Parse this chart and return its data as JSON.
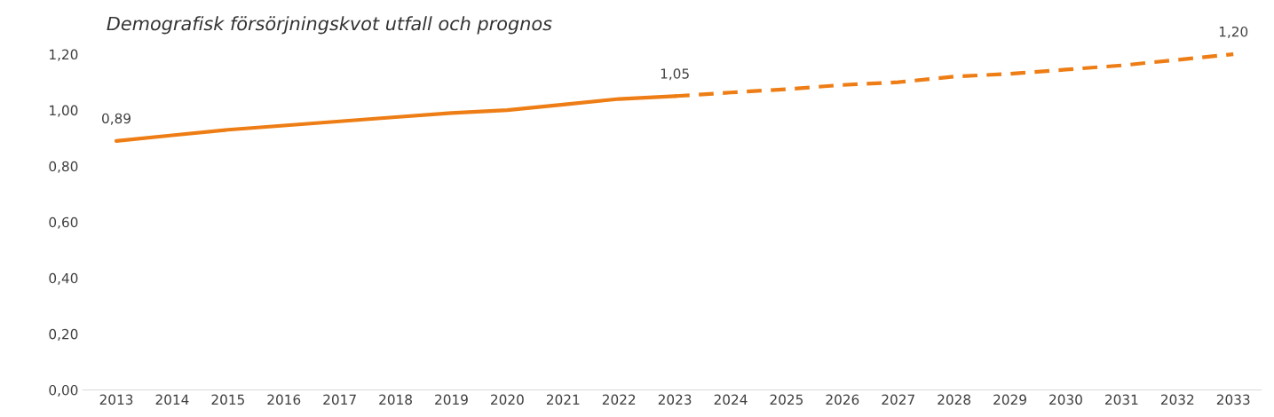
{
  "chart_data": {
    "type": "line",
    "title": "Demografisk försörjningskvot utfall och prognos",
    "categories": [
      "2013",
      "2014",
      "2015",
      "2016",
      "2017",
      "2018",
      "2019",
      "2020",
      "2021",
      "2022",
      "2023",
      "2024",
      "2025",
      "2026",
      "2027",
      "2028",
      "2029",
      "2030",
      "2031",
      "2032",
      "2033"
    ],
    "series": [
      {
        "color": "#ed7d14",
        "line_style": "solid",
        "values": [
          0.89,
          0.91,
          0.93,
          0.945,
          0.96,
          0.975,
          0.99,
          1.0,
          1.02,
          1.04,
          1.05,
          null,
          null,
          null,
          null,
          null,
          null,
          null,
          null,
          null,
          null
        ],
        "value_labels": [
          "0,89",
          null,
          null,
          null,
          null,
          null,
          null,
          null,
          null,
          null,
          "1,05",
          null,
          null,
          null,
          null,
          null,
          null,
          null,
          null,
          null,
          null
        ]
      },
      {
        "color": "#ed7d14",
        "line_style": "dashed",
        "values": [
          null,
          null,
          null,
          null,
          null,
          null,
          null,
          null,
          null,
          null,
          1.05,
          1.063,
          1.075,
          1.09,
          1.1,
          1.12,
          1.13,
          1.145,
          1.16,
          1.18,
          1.2
        ],
        "value_labels": [
          null,
          null,
          null,
          null,
          null,
          null,
          null,
          null,
          null,
          null,
          null,
          null,
          null,
          null,
          null,
          null,
          null,
          null,
          null,
          null,
          "1,20"
        ]
      }
    ],
    "ylim": [
      0,
      1.2
    ],
    "yticks": [
      {
        "value": 0,
        "label": "0,00"
      },
      {
        "value": 0.2,
        "label": "0,20"
      },
      {
        "value": 0.4,
        "label": "0,40"
      },
      {
        "value": 0.6,
        "label": "0,60"
      },
      {
        "value": 0.8,
        "label": "0,80"
      },
      {
        "value": 1.0,
        "label": "1,00"
      },
      {
        "value": 1.2,
        "label": "1,20"
      }
    ],
    "grid": false,
    "legend": false,
    "marker": "none"
  }
}
